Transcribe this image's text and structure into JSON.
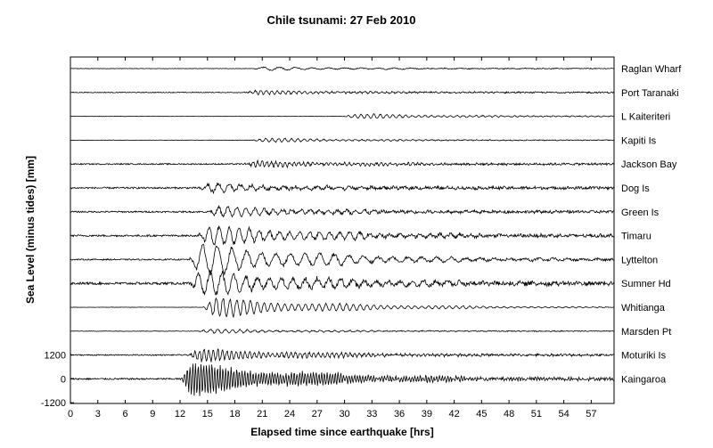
{
  "chart_data": {
    "type": "line",
    "title": "Chile tsunami: 27 Feb 2010",
    "xlabel": "Elapsed time since earthquake [hrs]",
    "ylabel": "Sea Level (minus tides) [mm]",
    "xlim": [
      0,
      59.5
    ],
    "x_ticks": [
      0,
      3,
      6,
      9,
      12,
      15,
      18,
      21,
      24,
      27,
      30,
      33,
      36,
      39,
      42,
      45,
      48,
      51,
      54,
      57
    ],
    "y_ticks": [
      1200,
      0,
      -1200
    ],
    "grid": false,
    "legend": "none",
    "line_color": "#000000",
    "offset_spacing_mm": 1200,
    "series": [
      {
        "name": "Raglan Wharf",
        "onset_hr": 20.0,
        "peak_amp_mm": 90,
        "noise_mm": 22,
        "period_hr": 1.8
      },
      {
        "name": "Port Taranaki",
        "onset_hr": 19.0,
        "peak_amp_mm": 110,
        "noise_mm": 35,
        "period_hr": 0.6
      },
      {
        "name": "L Kaiteriteri",
        "onset_hr": 30.0,
        "peak_amp_mm": 130,
        "noise_mm": 20,
        "period_hr": 0.7
      },
      {
        "name": "Kapiti Is",
        "onset_hr": 20.0,
        "peak_amp_mm": 100,
        "noise_mm": 22,
        "period_hr": 0.7
      },
      {
        "name": "Jackson Bay",
        "onset_hr": 19.0,
        "peak_amp_mm": 150,
        "noise_mm": 55,
        "period_hr": 0.5
      },
      {
        "name": "Dog Is",
        "onset_hr": 14.0,
        "peak_amp_mm": 220,
        "noise_mm": 75,
        "period_hr": 1.2
      },
      {
        "name": "Green Is",
        "onset_hr": 15.0,
        "peak_amp_mm": 280,
        "noise_mm": 70,
        "period_hr": 1.0
      },
      {
        "name": "Timaru",
        "onset_hr": 14.0,
        "peak_amp_mm": 550,
        "noise_mm": 80,
        "period_hr": 1.1
      },
      {
        "name": "Lyttelton",
        "onset_hr": 13.0,
        "peak_amp_mm": 850,
        "noise_mm": 60,
        "period_hr": 1.6
      },
      {
        "name": "Sumner Hd",
        "onset_hr": 13.0,
        "peak_amp_mm": 700,
        "noise_mm": 110,
        "period_hr": 1.3
      },
      {
        "name": "Whitianga",
        "onset_hr": 14.5,
        "peak_amp_mm": 520,
        "noise_mm": 15,
        "period_hr": 0.75
      },
      {
        "name": "Marsden Pt",
        "onset_hr": 14.0,
        "peak_amp_mm": 110,
        "noise_mm": 25,
        "period_hr": 0.8
      },
      {
        "name": "Moturiki Is",
        "onset_hr": 13.0,
        "peak_amp_mm": 350,
        "noise_mm": 55,
        "period_hr": 0.5
      },
      {
        "name": "Kaingaroa",
        "onset_hr": 12.0,
        "peak_amp_mm": 900,
        "noise_mm": 75,
        "period_hr": 0.3
      }
    ]
  }
}
